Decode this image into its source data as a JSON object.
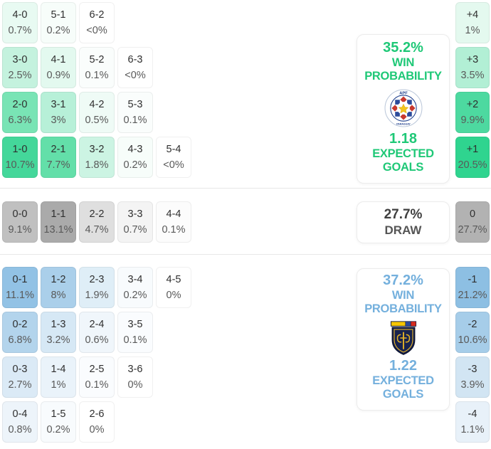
{
  "colors": {
    "home_accent": "#1fc877",
    "away_accent": "#74b0dd",
    "draw_text": "#3f3f3f"
  },
  "home": {
    "win_pct": "35.2%",
    "win_line1": "WIN",
    "win_line2": "PROBABILITY",
    "xg": "1.18",
    "xg_line1": "EXPECTED",
    "xg_line2": "GOALS",
    "logo": "paraguay-apf-crest",
    "logo_text": "APF",
    "logo_subtext": "PARAGUAY",
    "rows": [
      [
        {
          "score": "4-0",
          "pct": "0.7%",
          "bg": "#e8faf2"
        },
        {
          "score": "5-1",
          "pct": "0.2%",
          "bg": "#f7fdfa"
        },
        {
          "score": "6-2",
          "pct": "<0%",
          "bg": "#ffffff"
        }
      ],
      [
        {
          "score": "3-0",
          "pct": "2.5%",
          "bg": "#c4f2de"
        },
        {
          "score": "4-1",
          "pct": "0.9%",
          "bg": "#e3f9ef"
        },
        {
          "score": "5-2",
          "pct": "0.1%",
          "bg": "#fafdfc"
        },
        {
          "score": "6-3",
          "pct": "<0%",
          "bg": "#ffffff"
        }
      ],
      [
        {
          "score": "2-0",
          "pct": "6.3%",
          "bg": "#79e4b5"
        },
        {
          "score": "3-1",
          "pct": "3%",
          "bg": "#b7f0d8"
        },
        {
          "score": "4-2",
          "pct": "0.5%",
          "bg": "#effbf6"
        },
        {
          "score": "5-3",
          "pct": "0.1%",
          "bg": "#fafdfc"
        }
      ],
      [
        {
          "score": "1-0",
          "pct": "10.7%",
          "bg": "#44d79a"
        },
        {
          "score": "2-1",
          "pct": "7.7%",
          "bg": "#63dfa9"
        },
        {
          "score": "3-2",
          "pct": "1.8%",
          "bg": "#ccf4e3"
        },
        {
          "score": "4-3",
          "pct": "0.2%",
          "bg": "#f7fdfa"
        },
        {
          "score": "5-4",
          "pct": "<0%",
          "bg": "#ffffff"
        }
      ]
    ],
    "diffs": [
      {
        "label": "+4",
        "pct": "1%",
        "bg": "#e4f9ef"
      },
      {
        "label": "+3",
        "pct": "3.5%",
        "bg": "#b2efd5"
      },
      {
        "label": "+2",
        "pct": "9.9%",
        "bg": "#4dd9a0"
      },
      {
        "label": "+1",
        "pct": "20.5%",
        "bg": "#2fd48f"
      }
    ]
  },
  "draw": {
    "pct": "27.7%",
    "label": "DRAW",
    "rows": [
      [
        {
          "score": "0-0",
          "pct": "9.1%",
          "bg": "#c0c0c0"
        },
        {
          "score": "1-1",
          "pct": "13.1%",
          "bg": "#aaaaaa"
        },
        {
          "score": "2-2",
          "pct": "4.7%",
          "bg": "#dfdfdf"
        },
        {
          "score": "3-3",
          "pct": "0.7%",
          "bg": "#f4f4f4"
        },
        {
          "score": "4-4",
          "pct": "0.1%",
          "bg": "#fcfcfc"
        }
      ]
    ],
    "diffs": [
      {
        "label": "0",
        "pct": "27.7%",
        "bg": "#b2b2b2"
      }
    ]
  },
  "away": {
    "win_pct": "37.2%",
    "win_line1": "WIN",
    "win_line2": "PROBABILITY",
    "xg": "1.22",
    "xg_line1": "EXPECTED",
    "xg_line2": "GOALS",
    "logo": "ecuador-fef-crest",
    "rows": [
      [
        {
          "score": "0-1",
          "pct": "11.1%",
          "bg": "#92c2e5"
        },
        {
          "score": "1-2",
          "pct": "8%",
          "bg": "#aacfea"
        },
        {
          "score": "2-3",
          "pct": "1.9%",
          "bg": "#dfeef7"
        },
        {
          "score": "3-4",
          "pct": "0.2%",
          "bg": "#f8fbfd"
        },
        {
          "score": "4-5",
          "pct": "0%",
          "bg": "#ffffff"
        }
      ],
      [
        {
          "score": "0-2",
          "pct": "6.8%",
          "bg": "#b3d4ec"
        },
        {
          "score": "1-3",
          "pct": "3.2%",
          "bg": "#d6e8f5"
        },
        {
          "score": "2-4",
          "pct": "0.6%",
          "bg": "#f0f6fb"
        },
        {
          "score": "3-5",
          "pct": "0.1%",
          "bg": "#fafcfe"
        }
      ],
      [
        {
          "score": "0-3",
          "pct": "2.7%",
          "bg": "#dbeaf6"
        },
        {
          "score": "1-4",
          "pct": "1%",
          "bg": "#eaf3fa"
        },
        {
          "score": "2-5",
          "pct": "0.1%",
          "bg": "#fafcfe"
        },
        {
          "score": "3-6",
          "pct": "0%",
          "bg": "#ffffff"
        }
      ],
      [
        {
          "score": "0-4",
          "pct": "0.8%",
          "bg": "#edf4fa"
        },
        {
          "score": "1-5",
          "pct": "0.2%",
          "bg": "#f8fbfd"
        },
        {
          "score": "2-6",
          "pct": "0%",
          "bg": "#ffffff"
        }
      ]
    ],
    "diffs": [
      {
        "label": "-1",
        "pct": "21.2%",
        "bg": "#8dbfe3"
      },
      {
        "label": "-2",
        "pct": "10.6%",
        "bg": "#a6cde9"
      },
      {
        "label": "-3",
        "pct": "3.9%",
        "bg": "#d2e5f3"
      },
      {
        "label": "-4",
        "pct": "1.1%",
        "bg": "#e8f1f9"
      }
    ]
  }
}
